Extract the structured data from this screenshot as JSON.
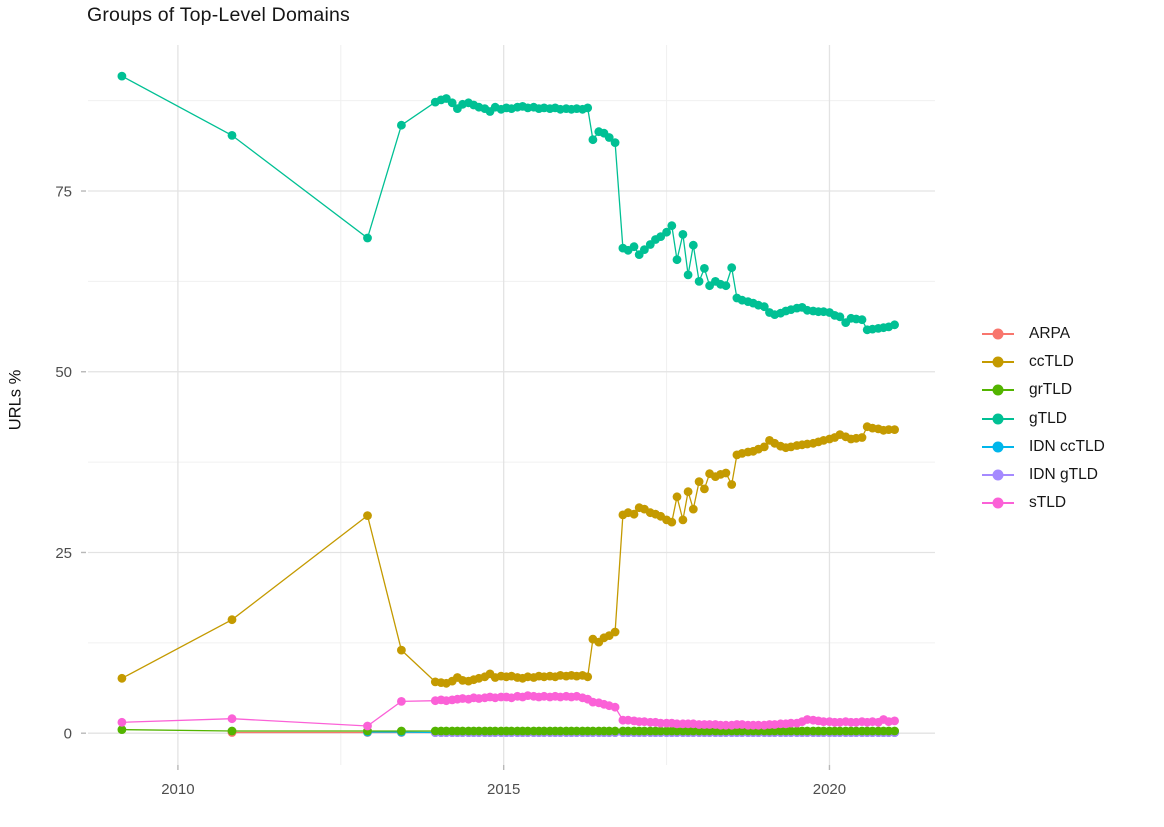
{
  "title": "Groups of Top-Level Domains",
  "axes": {
    "y_label": "URLs %"
  },
  "legend": {
    "items": [
      {
        "label": "ARPA",
        "color": "#F8766D"
      },
      {
        "label": "ccTLD",
        "color": "#C49A00"
      },
      {
        "label": "grTLD",
        "color": "#53B400"
      },
      {
        "label": "gTLD",
        "color": "#00C094"
      },
      {
        "label": "IDN ccTLD",
        "color": "#00B6EB"
      },
      {
        "label": "IDN gTLD",
        "color": "#A58AFF"
      },
      {
        "label": "sTLD",
        "color": "#FB61D7"
      }
    ]
  },
  "chart_data": {
    "type": "line",
    "title": "Groups of Top-Level Domains",
    "xlabel": "",
    "ylabel": "URLs %",
    "legend_position": "right",
    "grid": true,
    "x_domain": [
      2008.62,
      2021.62
    ],
    "y_domain": [
      -4.4,
      95.2
    ],
    "x_major_gridlines": [
      2010,
      2015,
      2020
    ],
    "x_minor_gridlines": [
      2012.5,
      2017.5
    ],
    "y_major_gridlines": [
      0,
      25,
      50,
      75
    ],
    "y_minor_gridlines": [
      12.5,
      37.5,
      62.5,
      87.5
    ],
    "x_tick_labels": [
      [
        2010,
        "2010"
      ],
      [
        2015,
        "2015"
      ],
      [
        2020,
        "2020"
      ]
    ],
    "y_tick_labels": [
      [
        0,
        "0"
      ],
      [
        25,
        "25"
      ],
      [
        50,
        "50"
      ],
      [
        75,
        "75"
      ]
    ],
    "x": [
      2009.14,
      2010.83,
      2012.91,
      2013.43,
      2013.95,
      2014.04,
      2014.12,
      2014.21,
      2014.29,
      2014.37,
      2014.46,
      2014.54,
      2014.62,
      2014.71,
      2014.79,
      2014.87,
      2014.96,
      2015.04,
      2015.12,
      2015.21,
      2015.29,
      2015.37,
      2015.46,
      2015.54,
      2015.62,
      2015.71,
      2015.79,
      2015.87,
      2015.96,
      2016.04,
      2016.12,
      2016.21,
      2016.29,
      2016.37,
      2016.46,
      2016.54,
      2016.62,
      2016.71,
      2016.83,
      2016.91,
      2017.0,
      2017.08,
      2017.16,
      2017.25,
      2017.33,
      2017.41,
      2017.5,
      2017.58,
      2017.66,
      2017.75,
      2017.83,
      2017.91,
      2018.0,
      2018.08,
      2018.16,
      2018.25,
      2018.33,
      2018.41,
      2018.5,
      2018.58,
      2018.66,
      2018.75,
      2018.83,
      2018.91,
      2019.0,
      2019.08,
      2019.16,
      2019.25,
      2019.33,
      2019.41,
      2019.5,
      2019.58,
      2019.66,
      2019.75,
      2019.83,
      2019.91,
      2020.0,
      2020.08,
      2020.16,
      2020.25,
      2020.33,
      2020.41,
      2020.5,
      2020.58,
      2020.66,
      2020.75,
      2020.83,
      2020.91,
      2021.0
    ],
    "draw_order": [
      "ARPA",
      "IDN ccTLD",
      "IDN gTLD",
      "grTLD",
      "ccTLD",
      "gTLD",
      "sTLD"
    ],
    "series": [
      {
        "name": "ARPA",
        "color": "#F8766D",
        "values": [
          null,
          0.1,
          0.1,
          0.1,
          0.1,
          0.1,
          0.1,
          0.1,
          0.1,
          0.1,
          0.1,
          0.1,
          0.1,
          0.1,
          0.1,
          0.1,
          0.1,
          0.1,
          0.1,
          0.1,
          0.1,
          0.1,
          0.1,
          0.1,
          0.1,
          0.1,
          0.1,
          0.1,
          0.1,
          0.1,
          0.1,
          0.1,
          0.1,
          0.1,
          0.1,
          0.1,
          0.1,
          0.1,
          0.1,
          0.1,
          0.1,
          0.1,
          0.1,
          0.1,
          0.1,
          0.1,
          0.1,
          0.1,
          0.1,
          0.1,
          0.1,
          0.1,
          0.1,
          0.1,
          0.1,
          0.1,
          0.1,
          0.1,
          0.1,
          0.1,
          0.1,
          0.1,
          0.1,
          0.1,
          0.1,
          0.1,
          0.1,
          0.1,
          0.1,
          0.1,
          0.1,
          0.1,
          0.1,
          0.1,
          0.1,
          0.1,
          0.1,
          0.1,
          0.1,
          0.1,
          0.1,
          0.1,
          0.1,
          0.1,
          0.1,
          0.1,
          0.1,
          0.1,
          0.1
        ]
      },
      {
        "name": "ccTLD",
        "color": "#C49A00",
        "values": [
          7.6,
          15.7,
          30.1,
          11.5,
          7.1,
          7.0,
          6.9,
          7.2,
          7.7,
          7.3,
          7.2,
          7.4,
          7.6,
          7.8,
          8.2,
          7.7,
          7.9,
          7.8,
          7.9,
          7.7,
          7.6,
          7.8,
          7.7,
          7.9,
          7.8,
          7.9,
          7.8,
          8.0,
          7.9,
          8.0,
          7.9,
          8.0,
          7.8,
          13.0,
          12.6,
          13.2,
          13.5,
          14.0,
          30.2,
          30.5,
          30.3,
          31.2,
          31.0,
          30.5,
          30.3,
          30.0,
          29.5,
          29.2,
          32.7,
          29.5,
          33.4,
          31.0,
          34.8,
          33.8,
          35.9,
          35.5,
          35.8,
          36.0,
          34.4,
          38.5,
          38.7,
          38.9,
          39.0,
          39.3,
          39.6,
          40.5,
          40.1,
          39.7,
          39.5,
          39.6,
          39.8,
          39.9,
          40.0,
          40.1,
          40.3,
          40.5,
          40.7,
          40.9,
          41.3,
          41.0,
          40.7,
          40.8,
          40.9,
          42.4,
          42.2,
          42.1,
          41.9,
          42.0,
          42.0
        ]
      },
      {
        "name": "grTLD",
        "color": "#53B400",
        "values": [
          0.5,
          0.3,
          0.3,
          0.3,
          0.3,
          0.3,
          0.3,
          0.3,
          0.3,
          0.3,
          0.3,
          0.3,
          0.3,
          0.3,
          0.3,
          0.3,
          0.3,
          0.3,
          0.3,
          0.3,
          0.3,
          0.3,
          0.3,
          0.3,
          0.3,
          0.3,
          0.3,
          0.3,
          0.3,
          0.3,
          0.3,
          0.3,
          0.3,
          0.3,
          0.3,
          0.3,
          0.3,
          0.3,
          0.3,
          0.3,
          0.3,
          0.3,
          0.3,
          0.3,
          0.3,
          0.3,
          0.3,
          0.3,
          0.3,
          0.3,
          0.3,
          0.3,
          0.3,
          0.3,
          0.3,
          0.3,
          0.3,
          0.3,
          0.3,
          0.3,
          0.3,
          0.3,
          0.3,
          0.3,
          0.3,
          0.3,
          0.3,
          0.3,
          0.3,
          0.3,
          0.3,
          0.3,
          0.3,
          0.3,
          0.3,
          0.3,
          0.3,
          0.3,
          0.3,
          0.3,
          0.3,
          0.3,
          0.3,
          0.3,
          0.3,
          0.3,
          0.3,
          0.3,
          0.3
        ]
      },
      {
        "name": "gTLD",
        "color": "#00C094",
        "values": [
          90.9,
          82.7,
          68.5,
          84.1,
          87.3,
          87.6,
          87.8,
          87.2,
          86.4,
          87.0,
          87.2,
          86.9,
          86.6,
          86.4,
          86.0,
          86.6,
          86.3,
          86.5,
          86.4,
          86.6,
          86.7,
          86.5,
          86.6,
          86.4,
          86.5,
          86.4,
          86.5,
          86.3,
          86.4,
          86.3,
          86.4,
          86.3,
          86.5,
          82.1,
          83.2,
          83.0,
          82.4,
          81.7,
          67.1,
          66.8,
          67.3,
          66.2,
          66.9,
          67.6,
          68.3,
          68.7,
          69.3,
          70.2,
          65.5,
          69.0,
          63.4,
          67.5,
          62.5,
          64.3,
          61.9,
          62.5,
          62.1,
          61.9,
          64.4,
          60.2,
          59.9,
          59.7,
          59.5,
          59.2,
          59.0,
          58.2,
          57.9,
          58.1,
          58.4,
          58.6,
          58.8,
          58.9,
          58.5,
          58.4,
          58.3,
          58.3,
          58.2,
          57.8,
          57.6,
          56.8,
          57.4,
          57.3,
          57.2,
          55.8,
          55.9,
          56.0,
          56.1,
          56.2,
          56.5
        ]
      },
      {
        "name": "IDN ccTLD",
        "color": "#00B6EB",
        "values": [
          null,
          null,
          0.15,
          0.15,
          0.1,
          0.1,
          0.1,
          0.1,
          0.1,
          0.1,
          0.1,
          0.1,
          0.1,
          0.1,
          0.1,
          0.1,
          0.1,
          0.1,
          0.1,
          0.1,
          0.1,
          0.1,
          0.1,
          0.1,
          0.1,
          0.1,
          0.1,
          0.1,
          0.1,
          0.1,
          0.1,
          0.1,
          0.1,
          0.1,
          0.1,
          0.1,
          0.1,
          0.1,
          0.1,
          0.1,
          0.1,
          0.1,
          0.1,
          0.1,
          0.1,
          0.1,
          0.1,
          0.1,
          0.1,
          0.1,
          0.1,
          0.1,
          0.1,
          0.1,
          0.1,
          0.1,
          0.1,
          0.1,
          0.1,
          0.1,
          0.1,
          0.1,
          0.1,
          0.1,
          0.1,
          0.1,
          0.1,
          0.1,
          0.1,
          0.1,
          0.1,
          0.1,
          0.1,
          0.1,
          0.1,
          0.1,
          0.1,
          0.1,
          0.1,
          0.1,
          0.1,
          0.1,
          0.1,
          0.1,
          0.1,
          0.1,
          0.1,
          0.1,
          0.1
        ]
      },
      {
        "name": "IDN gTLD",
        "color": "#A58AFF",
        "values": [
          null,
          null,
          null,
          null,
          0.08,
          0.08,
          0.08,
          0.08,
          0.08,
          0.08,
          0.08,
          0.08,
          0.08,
          0.08,
          0.08,
          0.08,
          0.08,
          0.08,
          0.08,
          0.08,
          0.08,
          0.08,
          0.08,
          0.08,
          0.08,
          0.08,
          0.08,
          0.08,
          0.08,
          0.08,
          0.08,
          0.08,
          0.08,
          0.08,
          0.08,
          0.08,
          0.08,
          0.08,
          0.08,
          0.08,
          0.08,
          0.08,
          0.08,
          0.08,
          0.08,
          0.08,
          0.08,
          0.08,
          0.08,
          0.08,
          0.08,
          0.08,
          0.08,
          0.08,
          0.08,
          0.08,
          0.08,
          0.08,
          0.08,
          0.08,
          0.08,
          0.08,
          0.08,
          0.08,
          0.08,
          0.08,
          0.08,
          0.08,
          0.08,
          0.08,
          0.08,
          0.08,
          0.08,
          0.08,
          0.08,
          0.08,
          0.08,
          0.08,
          0.08,
          0.08,
          0.08,
          0.08,
          0.08,
          0.08,
          0.08,
          0.08,
          0.08,
          0.08,
          0.08
        ]
      },
      {
        "name": "sTLD",
        "color": "#FB61D7",
        "values": [
          1.5,
          2.0,
          1.0,
          4.4,
          4.5,
          4.6,
          4.5,
          4.6,
          4.7,
          4.8,
          4.7,
          4.9,
          4.8,
          4.9,
          5.0,
          4.9,
          5.0,
          5.0,
          4.9,
          5.1,
          5.0,
          5.2,
          5.1,
          5.0,
          5.1,
          5.0,
          5.1,
          5.0,
          5.1,
          5.0,
          5.1,
          4.9,
          4.7,
          4.3,
          4.2,
          4.0,
          3.8,
          3.6,
          1.8,
          1.8,
          1.7,
          1.6,
          1.6,
          1.5,
          1.5,
          1.4,
          1.4,
          1.4,
          1.3,
          1.3,
          1.3,
          1.3,
          1.2,
          1.2,
          1.2,
          1.2,
          1.1,
          1.1,
          1.1,
          1.2,
          1.2,
          1.1,
          1.1,
          1.1,
          1.1,
          1.2,
          1.2,
          1.3,
          1.3,
          1.4,
          1.4,
          1.6,
          1.9,
          1.8,
          1.7,
          1.6,
          1.6,
          1.5,
          1.5,
          1.6,
          1.5,
          1.5,
          1.6,
          1.5,
          1.6,
          1.5,
          1.9,
          1.6,
          1.7
        ]
      }
    ]
  }
}
